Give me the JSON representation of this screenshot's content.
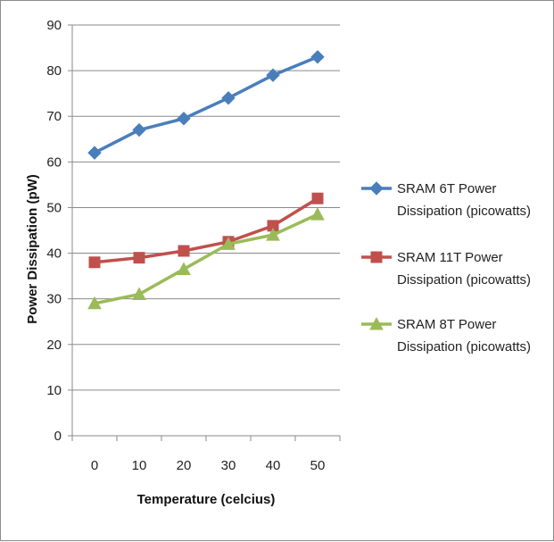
{
  "chart_data": {
    "type": "line",
    "title": "",
    "xlabel": "Temperature (celcius)",
    "ylabel": "Power Dissipation (pW)",
    "categories": [
      "0",
      "10",
      "20",
      "30",
      "40",
      "50"
    ],
    "ylim": [
      0,
      90
    ],
    "yticks": [
      0,
      10,
      20,
      30,
      40,
      50,
      60,
      70,
      80,
      90
    ],
    "grid": true,
    "legend_position": "right",
    "series": [
      {
        "name": "SRAM 6T  Power Dissipation (picowatts)",
        "legend_lines": [
          "SRAM 6T  Power",
          "Dissipation (picowatts)"
        ],
        "values": [
          62,
          67,
          69.5,
          74,
          79,
          83
        ],
        "color": "#4a7ebb",
        "marker": "diamond"
      },
      {
        "name": "SRAM 11T  Power Dissipation (picowatts)",
        "legend_lines": [
          "SRAM 11T  Power",
          "Dissipation (picowatts)"
        ],
        "values": [
          38,
          39,
          40.5,
          42.5,
          46,
          52
        ],
        "color": "#c0504d",
        "marker": "square"
      },
      {
        "name": "SRAM 8T  Power Dissipation (picowatts)",
        "legend_lines": [
          "SRAM 8T  Power",
          "Dissipation (picowatts)"
        ],
        "values": [
          29,
          31,
          36.5,
          42,
          44,
          48.5
        ],
        "color": "#9bbb59",
        "marker": "triangle"
      }
    ]
  }
}
